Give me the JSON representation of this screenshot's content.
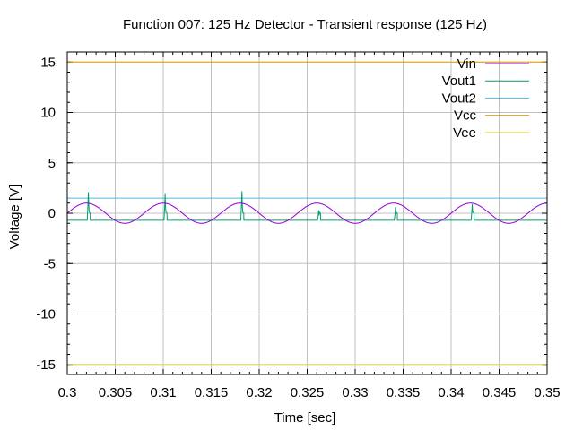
{
  "chart_data": {
    "type": "line",
    "title": "Function 007: 125 Hz Detector - Transient response (125 Hz)",
    "xlabel": "Time [sec]",
    "ylabel": "Voltage [V]",
    "xlim": [
      0.3,
      0.35
    ],
    "ylim": [
      -16,
      16
    ],
    "grid": true,
    "legend_position": "top-right",
    "x_ticks": [
      0.3,
      0.305,
      0.31,
      0.315,
      0.32,
      0.325,
      0.33,
      0.335,
      0.34,
      0.345,
      0.35
    ],
    "x_tick_labels": [
      "0.3",
      "0.305",
      "0.31",
      "0.315",
      "0.32",
      "0.325",
      "0.33",
      "0.335",
      "0.34",
      "0.345",
      "0.35"
    ],
    "y_ticks": [
      -15,
      -10,
      -5,
      0,
      5,
      10,
      15
    ],
    "y_tick_labels": [
      "-15",
      "-10",
      "-5",
      "0",
      "5",
      "10",
      "15"
    ],
    "series": [
      {
        "name": "Vin",
        "color": "#9400d3",
        "kind": "sine",
        "amplitude": 1.0,
        "frequency_hz": 125,
        "phase_deg": 180,
        "offset": 0
      },
      {
        "name": "Vout1",
        "color": "#009e73",
        "baseline": -0.7,
        "spikes": [
          {
            "t": 0.3022,
            "peak": 2.1
          },
          {
            "t": 0.3102,
            "peak": 1.9
          },
          {
            "t": 0.3182,
            "peak": 2.2
          },
          {
            "t": 0.3262,
            "peak": 0.3
          },
          {
            "t": 0.3342,
            "peak": 0.6
          },
          {
            "t": 0.3422,
            "peak": 0.9
          }
        ]
      },
      {
        "name": "Vout2",
        "color": "#56b4e9",
        "x": [
          0.3,
          0.35
        ],
        "y": [
          1.5,
          1.5
        ]
      },
      {
        "name": "Vcc",
        "color": "#e69f00",
        "x": [
          0.3,
          0.35
        ],
        "y": [
          15,
          15
        ]
      },
      {
        "name": "Vee",
        "color": "#f0e442",
        "x": [
          0.3,
          0.35
        ],
        "y": [
          -15,
          -15
        ]
      }
    ]
  }
}
